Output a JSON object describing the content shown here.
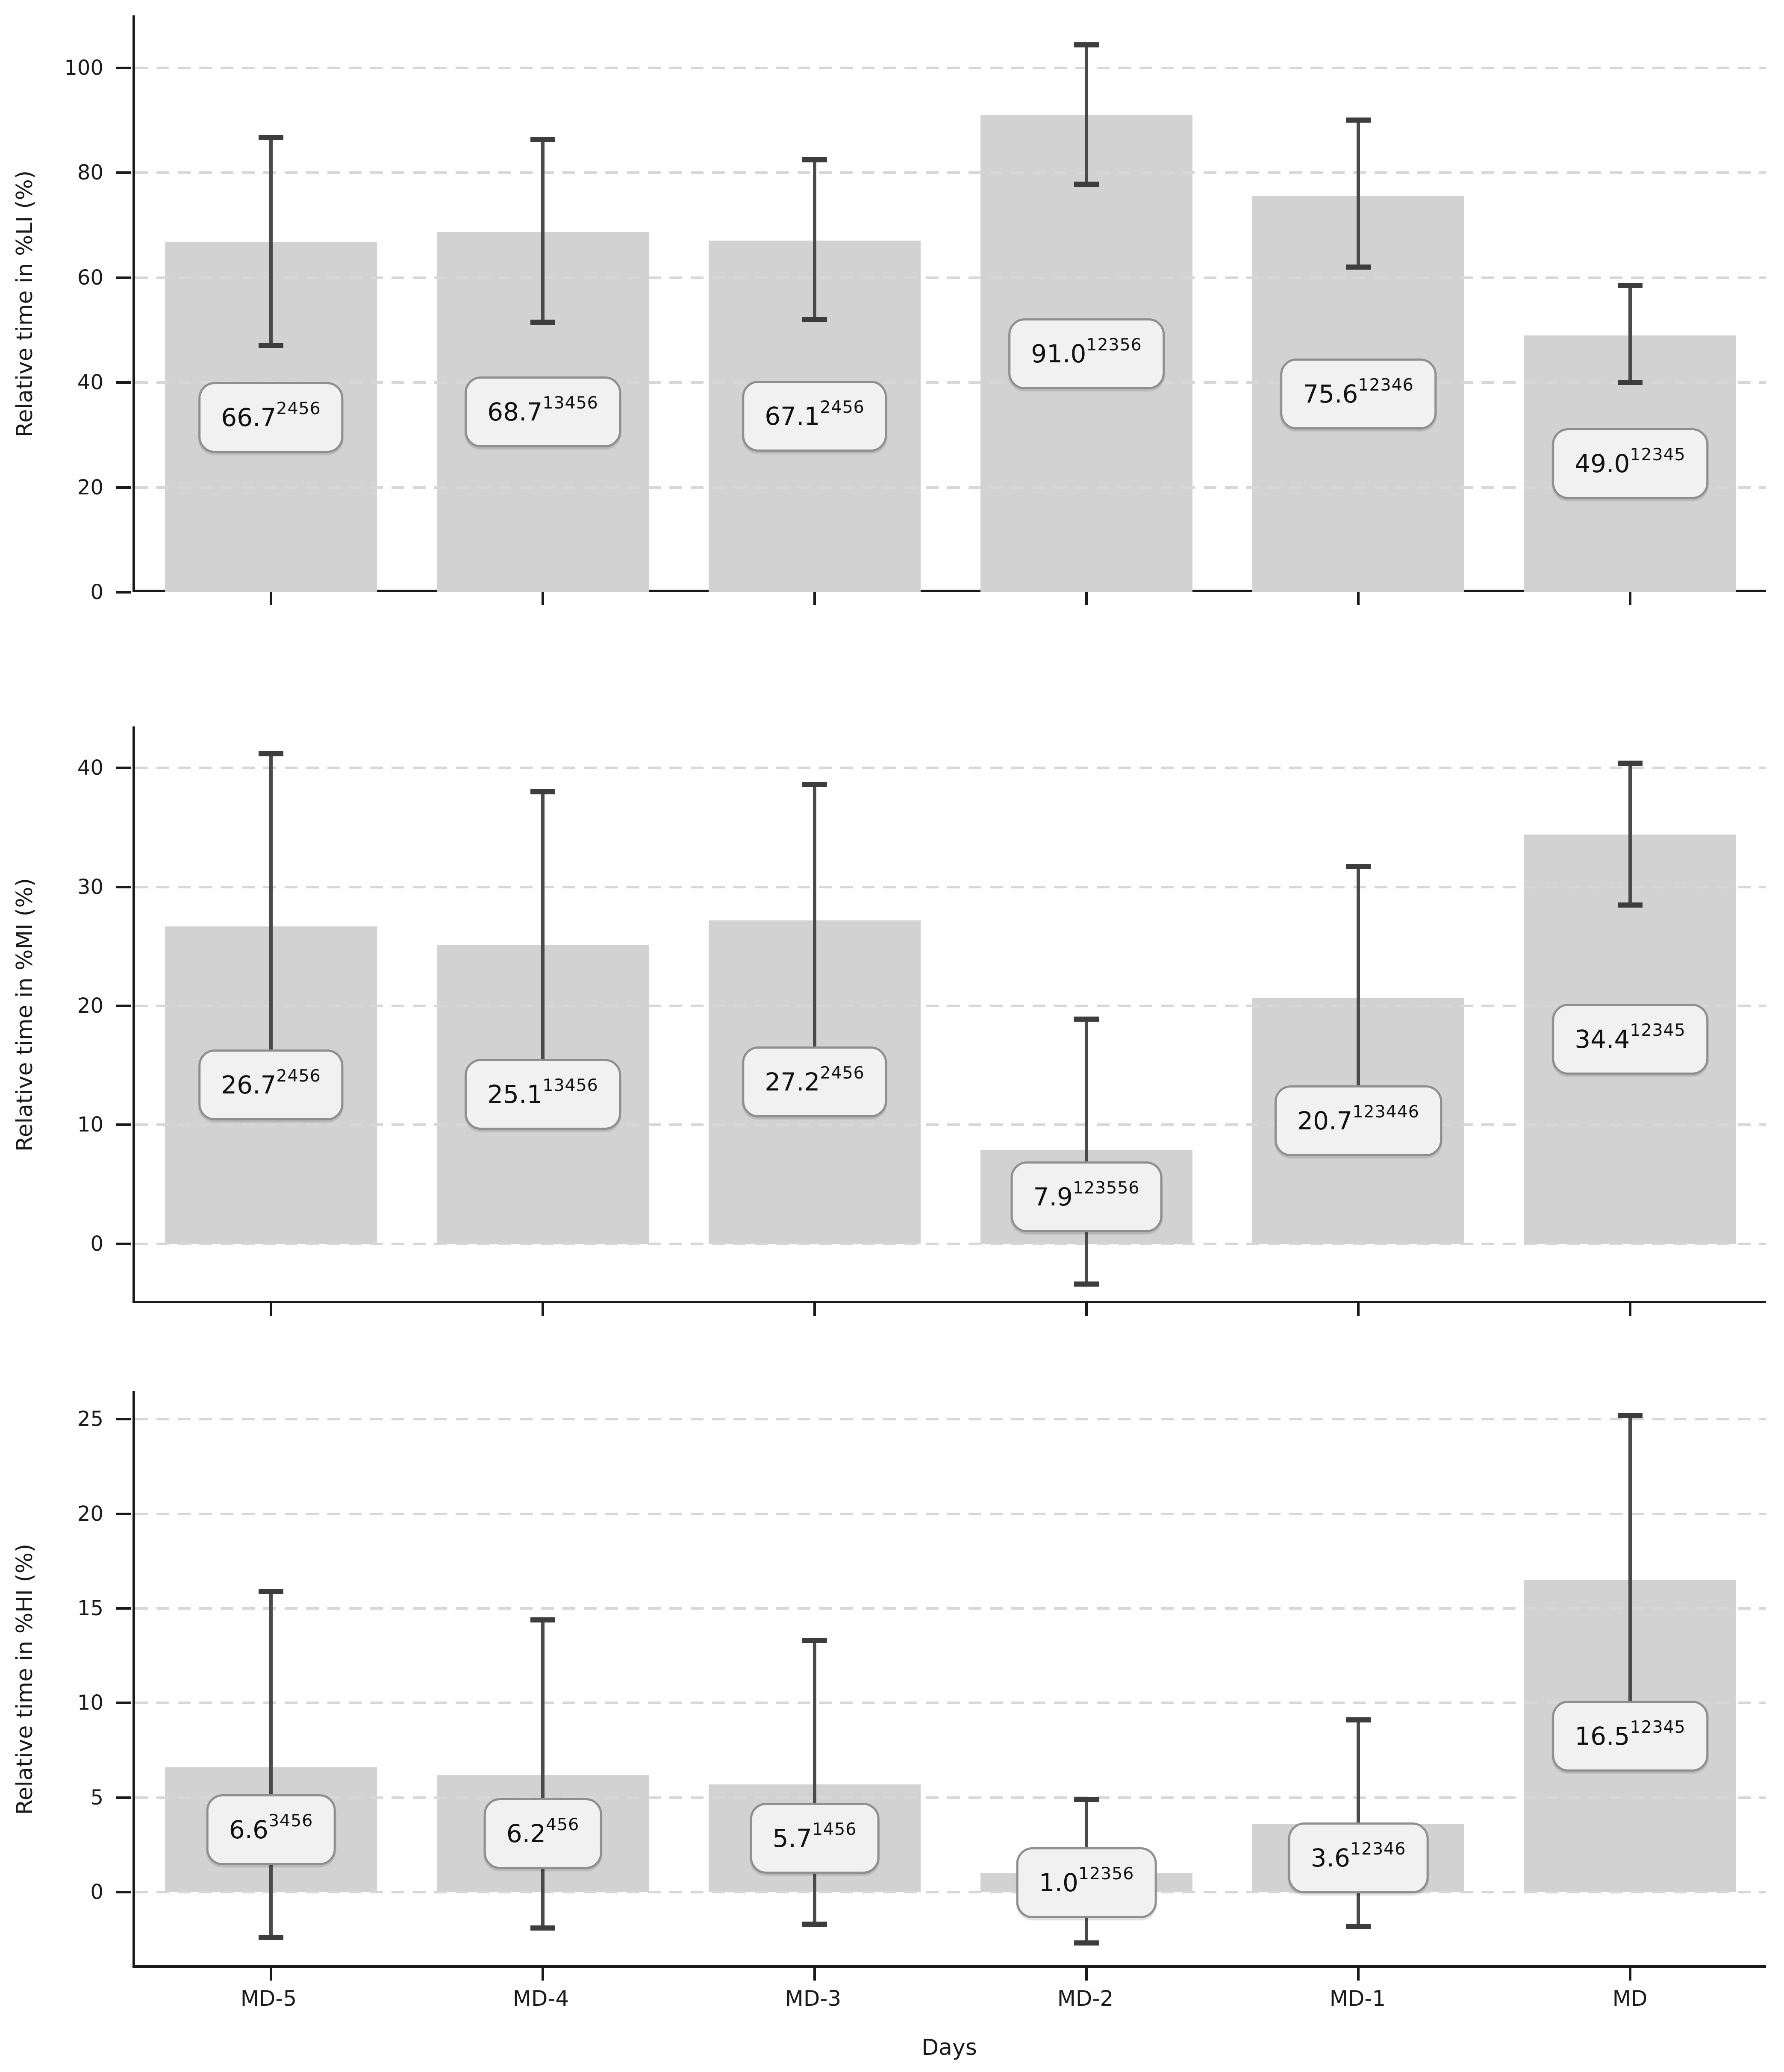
{
  "figure": {
    "xlabel": "Days",
    "background_color": "#ffffff",
    "bar_color": "#d2d2d2",
    "error_bar_color": "#4a4a4a",
    "gridline_color": "#d7d7d7",
    "label_box_bg": "#f1f1f1",
    "label_box_border": "#8f8f8f",
    "axis_color": "#1a1a1a"
  },
  "chart_data": [
    {
      "type": "bar",
      "ylabel": "Relative time in %LI (%)",
      "categories": [
        "MD-5",
        "MD-4",
        "MD-3",
        "MD-2",
        "MD-1",
        "MD"
      ],
      "values": [
        66.7,
        68.7,
        67.1,
        91.0,
        75.6,
        49.0
      ],
      "error_low": [
        47.0,
        51.5,
        52.0,
        77.8,
        62.0,
        40.0
      ],
      "error_high": [
        86.7,
        86.3,
        82.5,
        104.4,
        90.0,
        58.5
      ],
      "bar_labels": [
        "66.7",
        "68.7",
        "67.1",
        "91.0",
        "75.6",
        "49.0"
      ],
      "superscripts": [
        "2456",
        "13456",
        "2456",
        "12356",
        "12346",
        "12345"
      ],
      "yticks": [
        0,
        20,
        40,
        60,
        80,
        100
      ],
      "ylim": [
        0,
        110
      ],
      "grid": "dashed-horizontal",
      "legend": "none"
    },
    {
      "type": "bar",
      "ylabel": "Relative time in %MI (%)",
      "categories": [
        "MD-5",
        "MD-4",
        "MD-3",
        "MD-2",
        "MD-1",
        "MD"
      ],
      "values": [
        26.7,
        25.1,
        27.2,
        7.9,
        20.7,
        34.4
      ],
      "error_low": [
        12.5,
        12.2,
        16.0,
        -3.4,
        9.9,
        28.5
      ],
      "error_high": [
        41.2,
        38.0,
        38.6,
        18.9,
        31.7,
        40.4
      ],
      "bar_labels": [
        "26.7",
        "25.1",
        "27.2",
        "7.9",
        "20.7",
        "34.4"
      ],
      "superscripts": [
        "2456",
        "13456",
        "2456",
        "123556",
        "123446",
        "12345"
      ],
      "yticks": [
        0,
        10,
        20,
        30,
        40
      ],
      "ylim": [
        -5,
        43.5
      ],
      "grid": "dashed-horizontal",
      "legend": "none"
    },
    {
      "type": "bar",
      "ylabel": "Relative time in %HI (%)",
      "categories": [
        "MD-5",
        "MD-4",
        "MD-3",
        "MD-2",
        "MD-1",
        "MD"
      ],
      "values": [
        6.6,
        6.2,
        5.7,
        1.0,
        3.6,
        16.5
      ],
      "error_low": [
        -2.4,
        -1.9,
        -1.7,
        -2.7,
        -1.8,
        8.0
      ],
      "error_high": [
        15.9,
        14.4,
        13.3,
        4.9,
        9.1,
        25.2
      ],
      "bar_labels": [
        "6.6",
        "6.2",
        "5.7",
        "1.0",
        "3.6",
        "16.5"
      ],
      "superscripts": [
        "3456",
        "456",
        "1456",
        "12356",
        "12346",
        "12345"
      ],
      "yticks": [
        0,
        5,
        10,
        15,
        20,
        25
      ],
      "ylim": [
        -4,
        26.5
      ],
      "grid": "dashed-horizontal",
      "legend": "none"
    }
  ]
}
